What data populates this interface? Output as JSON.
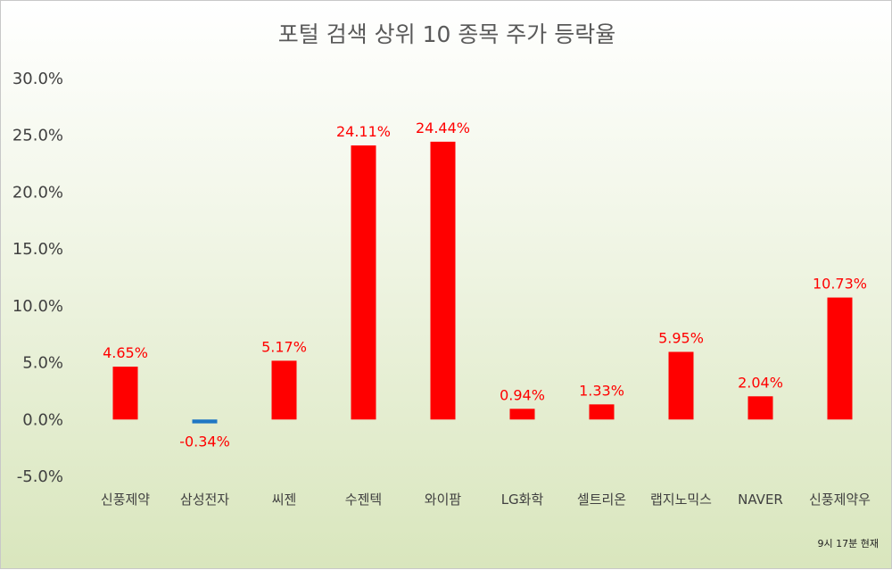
{
  "chart_data": {
    "type": "bar",
    "title": "포털 검색 상위 10 종목 주가 등락율",
    "footnote": "9시 17분 현재",
    "categories": [
      "신풍제약",
      "삼성전자",
      "씨젠",
      "수젠텍",
      "와이팜",
      "LG화학",
      "셀트리온",
      "랩지노믹스",
      "NAVER",
      "신풍제약우"
    ],
    "values": [
      4.65,
      -0.34,
      5.17,
      24.11,
      24.44,
      0.94,
      1.33,
      5.95,
      2.04,
      10.73
    ],
    "data_labels": [
      "4.65%",
      "-0.34%",
      "5.17%",
      "24.11%",
      "24.44%",
      "0.94%",
      "1.33%",
      "5.95%",
      "2.04%",
      "10.73%"
    ],
    "y_ticks": [
      "-5.0%",
      "0.0%",
      "5.0%",
      "10.0%",
      "15.0%",
      "20.0%",
      "25.0%",
      "30.0%"
    ],
    "ylim": [
      -5,
      30
    ],
    "xlabel": "",
    "ylabel": "",
    "grid": false,
    "colors": {
      "positive": "#ff0000",
      "negative": "#1f77c4"
    }
  }
}
